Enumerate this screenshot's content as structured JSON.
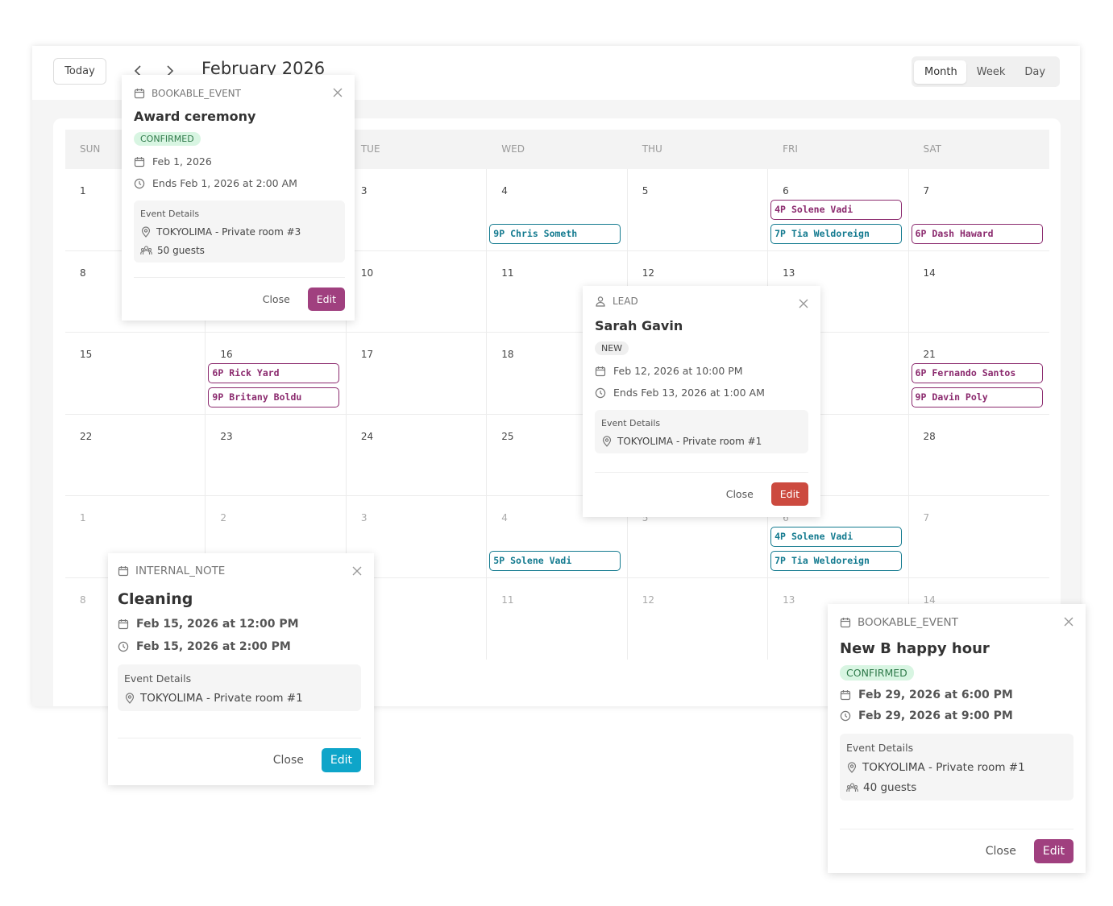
{
  "toolbar": {
    "today": "Today",
    "month": "February 2026",
    "views": [
      "Month",
      "Week",
      "Day"
    ]
  },
  "calendar": {
    "weekdays": [
      "SUN",
      null,
      "TUE",
      "WED",
      "THU",
      "FRI",
      "SAT"
    ],
    "weeks": [
      [
        {
          "day": "1"
        },
        {
          "day": null
        },
        {
          "day": "3"
        },
        {
          "day": "4",
          "events": [
            {
              "time": "9P",
              "name": "Chris Someth",
              "color": "#137a8f"
            }
          ]
        },
        {
          "day": "5"
        },
        {
          "day": "6",
          "events": [
            {
              "time": "4P",
              "name": "Solene Vadi",
              "color": "#8b2a6e"
            },
            {
              "time": "7P",
              "name": "Tia Weldoreign",
              "color": "#137a8f"
            }
          ]
        },
        {
          "day": "7",
          "events": [
            {
              "time": "6P",
              "name": "Dash Haward",
              "color": "#8b2a6e"
            }
          ]
        }
      ],
      [
        {
          "day": "8"
        },
        {
          "day": null
        },
        {
          "day": "10"
        },
        {
          "day": "11"
        },
        {
          "day": "12"
        },
        {
          "day": "13"
        },
        {
          "day": "14"
        }
      ],
      [
        {
          "day": "15"
        },
        {
          "day": "16",
          "events": [
            {
              "time": "6P",
              "name": "Rick Yard",
              "color": "#8b2a6e"
            },
            {
              "time": "9P",
              "name": "Britany Boldu",
              "color": "#8b2a6e"
            }
          ]
        },
        {
          "day": "17"
        },
        {
          "day": "18"
        },
        {
          "day": null
        },
        {
          "day": null
        },
        {
          "day": "21",
          "events": [
            {
              "time": "6P",
              "name": "Fernando Santos",
              "color": "#8b2a6e"
            },
            {
              "time": "9P",
              "name": "Davin Poly",
              "color": "#8b2a6e"
            }
          ]
        }
      ],
      [
        {
          "day": "22"
        },
        {
          "day": "23"
        },
        {
          "day": "24"
        },
        {
          "day": "25"
        },
        {
          "day": null
        },
        {
          "day": null
        },
        {
          "day": "28"
        }
      ],
      [
        {
          "day": "1"
        },
        {
          "day": "2"
        },
        {
          "day": "3"
        },
        {
          "day": "4",
          "events": [
            {
              "time": "5P",
              "name": "Solene Vadi",
              "color": "#137a8f"
            }
          ]
        },
        {
          "day": "5"
        },
        {
          "day": "6",
          "events": [
            {
              "time": "4P",
              "name": "Solene Vadi",
              "color": "#137a8f"
            },
            {
              "time": "7P",
              "name": "Tia Weldoreign",
              "color": "#137a8f"
            }
          ]
        },
        {
          "day": "7"
        }
      ],
      [
        {
          "day": "8"
        },
        {
          "day": null
        },
        {
          "day": null
        },
        {
          "day": "11"
        },
        {
          "day": "12"
        },
        {
          "day": "13"
        },
        {
          "day": "14"
        }
      ]
    ]
  },
  "popovers": [
    {
      "kind": "BOOKABLE_EVENT",
      "title": "Award ceremony",
      "badge": "CONFIRMED",
      "badge_color": "#d8f5e2",
      "date": "Feb 1, 2026",
      "time": "Ends Feb 1, 2026 at 2:00 AM",
      "details_label": "Event Details",
      "location": "TOKYOLIMA - Private room #3",
      "guests": "50 guests",
      "close": "Close",
      "edit": "Edit",
      "edit_color": "#a0407f"
    },
    {
      "kind": "LEAD",
      "title": "Sarah Gavin",
      "badge": "NEW",
      "badge_color": "#efefef",
      "date": "Feb 12, 2026 at 10:00 PM",
      "time": "Ends Feb 13, 2026 at 1:00 AM",
      "details_label": "Event Details",
      "location": "TOKYOLIMA - Private room #1",
      "close": "Close",
      "edit": "Edit",
      "edit_color": "#cc4a3f"
    },
    {
      "kind": "INTERNAL_NOTE",
      "title": "Cleaning",
      "date": "Feb 15, 2026 at 12:00 PM",
      "time": "Feb 15, 2026 at 2:00 PM",
      "details_label": "Event Details",
      "location": "TOKYOLIMA - Private room #1",
      "close": "Close",
      "edit": "Edit",
      "edit_color": "#0ea5c9"
    },
    {
      "kind": "BOOKABLE_EVENT",
      "title": "New B happy hour",
      "badge": "CONFIRMED",
      "badge_color": "#d8f5e2",
      "date": "Feb 29, 2026 at 6:00 PM",
      "time": "Feb 29, 2026 at 9:00 PM",
      "details_label": "Event Details",
      "location": "TOKYOLIMA - Private room #1",
      "guests": "40 guests",
      "close": "Close",
      "edit": "Edit",
      "edit_color": "#a0407f"
    }
  ]
}
